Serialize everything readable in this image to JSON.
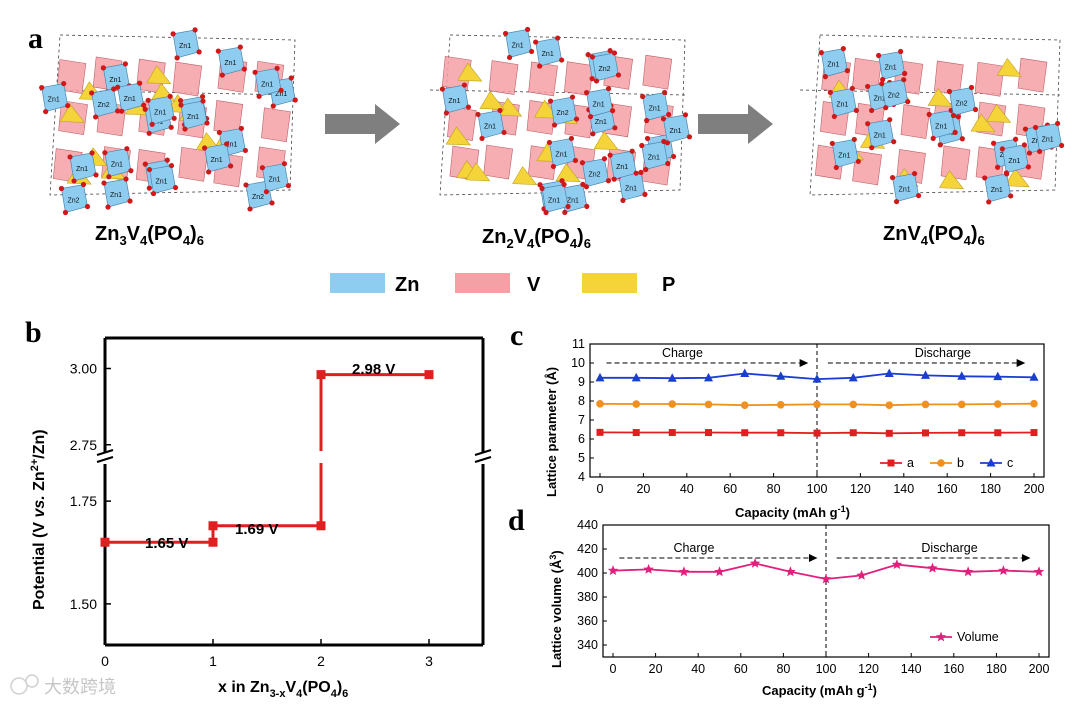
{
  "panel_a": {
    "letter": "a",
    "structures": [
      {
        "name": "Zn3V4(PO4)6",
        "main": "Zn",
        "n1": "3",
        "mid": "V",
        "n2": "4",
        "paren": "(PO",
        "n3": "4",
        "close": ")",
        "n4": "6"
      },
      {
        "name": "Zn2V4(PO4)6",
        "main": "Zn",
        "n1": "2",
        "mid": "V",
        "n2": "4",
        "paren": "(PO",
        "n3": "4",
        "close": ")",
        "n4": "6"
      },
      {
        "name": "ZnV4(PO4)6",
        "main": "Zn",
        "n1": "",
        "mid": "V",
        "n2": "4",
        "paren": "(PO",
        "n3": "4",
        "close": ")",
        "n4": "6"
      }
    ],
    "atom_labels": [
      "Zn1",
      "Zn2"
    ],
    "legend": [
      {
        "label": "Zn",
        "color": "#8ecdf0"
      },
      {
        "label": "V",
        "color": "#f4a0a4"
      },
      {
        "label": "P",
        "color": "#f5d43a"
      }
    ]
  },
  "panel_b": {
    "letter": "b",
    "chart_data": {
      "type": "line",
      "title": "",
      "xlabel": "x in Zn3-xV4(PO4)6",
      "ylabel": "Potential (V vs. Zn2+/Zn)",
      "xlim": [
        0,
        3.5
      ],
      "x_ticks": [
        "0",
        "1",
        "2",
        "3"
      ],
      "y_ticks_lower": [
        "1.50",
        "1.75"
      ],
      "y_ticks_upper": [
        "2.75",
        "3.00"
      ],
      "axis_break": [
        1.85,
        2.7
      ],
      "series": [
        {
          "name": "Potential",
          "color": "#e02020",
          "points": [
            [
              0,
              1.65
            ],
            [
              1,
              1.65
            ],
            [
              1,
              1.69
            ],
            [
              2,
              1.69
            ],
            [
              2,
              2.98
            ],
            [
              3,
              2.98
            ]
          ]
        }
      ],
      "annotations": [
        "1.65 V",
        "1.69 V",
        "2.98 V"
      ]
    },
    "ylabel_parts": {
      "a": "Potential (V ",
      "b": "vs.",
      "c": " Zn",
      "d": "2+",
      "e": "/Zn)"
    },
    "xlabel_parts": {
      "a": "x in Zn",
      "b": "3-x",
      "c": "V",
      "d": "4",
      "e": "(PO",
      "f": "4",
      "g": ")",
      "h": "6"
    }
  },
  "panel_c": {
    "letter": "c",
    "chart_data": {
      "type": "line",
      "xlabel": "Capacity (mAh g-1)",
      "ylabel": "Lattice parameter (Å)",
      "xlim": [
        0,
        200
      ],
      "ylim": [
        4,
        11
      ],
      "x": [
        0,
        16.7,
        33.3,
        50,
        66.7,
        83.3,
        100,
        116.7,
        133.3,
        150,
        166.7,
        183.3,
        200
      ],
      "series": [
        {
          "name": "a",
          "color": "#e02020",
          "marker": "square",
          "values": [
            6.35,
            6.34,
            6.34,
            6.34,
            6.33,
            6.33,
            6.31,
            6.33,
            6.3,
            6.32,
            6.33,
            6.33,
            6.34
          ]
        },
        {
          "name": "b",
          "color": "#f0901e",
          "marker": "circle",
          "values": [
            7.85,
            7.84,
            7.84,
            7.82,
            7.78,
            7.8,
            7.82,
            7.82,
            7.78,
            7.82,
            7.82,
            7.84,
            7.86
          ]
        },
        {
          "name": "c",
          "color": "#1a3fd0",
          "marker": "triangle",
          "values": [
            9.22,
            9.22,
            9.2,
            9.22,
            9.45,
            9.3,
            9.15,
            9.22,
            9.45,
            9.35,
            9.3,
            9.28,
            9.25
          ]
        }
      ],
      "annotations": {
        "charge": "Charge",
        "discharge": "Discharge"
      }
    }
  },
  "panel_d": {
    "letter": "d",
    "chart_data": {
      "type": "line",
      "xlabel": "Capacity (mAh g-1)",
      "ylabel": "Lattice volume (Å3)",
      "xlim": [
        0,
        200
      ],
      "ylim": [
        330,
        440
      ],
      "x": [
        0,
        16.7,
        33.3,
        50,
        66.7,
        83.3,
        100,
        116.7,
        133.3,
        150,
        166.7,
        183.3,
        200
      ],
      "series": [
        {
          "name": "Volume",
          "color": "#e0207c",
          "marker": "star",
          "values": [
            402,
            403,
            401,
            401,
            408,
            401,
            395,
            398,
            407,
            404,
            401,
            402,
            401
          ]
        }
      ],
      "annotations": {
        "charge": "Charge",
        "discharge": "Discharge"
      }
    }
  },
  "watermark": "大数跨境",
  "arrow_color": "#7f7f7f"
}
